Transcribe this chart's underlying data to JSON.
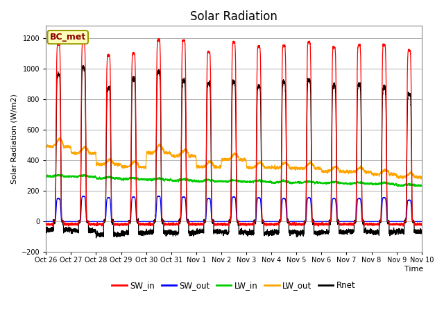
{
  "title": "Solar Radiation",
  "ylabel": "Solar Radiation (W/m2)",
  "xlabel": "Time",
  "ylim": [
    -200,
    1280
  ],
  "yticks": [
    -200,
    0,
    200,
    400,
    600,
    800,
    1000,
    1200
  ],
  "xtick_labels": [
    "Oct 26",
    "Oct 27",
    "Oct 28",
    "Oct 29",
    "Oct 30",
    "Oct 31",
    "Nov 1",
    "Nov 2",
    "Nov 3",
    "Nov 4",
    "Nov 5",
    "Nov 6",
    "Nov 7",
    "Nov 8",
    "Nov 9",
    "Nov 10"
  ],
  "n_days": 15,
  "points_per_day": 288,
  "SW_in_peak": [
    1160,
    1175,
    1090,
    1100,
    1190,
    1185,
    1110,
    1175,
    1145,
    1150,
    1175,
    1140,
    1155,
    1155,
    1120
  ],
  "SW_out_peak": [
    150,
    165,
    155,
    160,
    165,
    160,
    150,
    160,
    155,
    150,
    155,
    150,
    150,
    155,
    140
  ],
  "LW_in_base": [
    295,
    295,
    285,
    280,
    278,
    273,
    270,
    270,
    268,
    265,
    265,
    262,
    260,
    258,
    250
  ],
  "LW_out_base": [
    490,
    450,
    380,
    365,
    460,
    440,
    370,
    420,
    370,
    370,
    370,
    350,
    350,
    335,
    320
  ],
  "LW_out_day_bump": [
    50,
    40,
    30,
    35,
    50,
    40,
    35,
    40,
    35,
    35,
    35,
    30,
    30,
    30,
    25
  ],
  "Rnet_peak": [
    960,
    1005,
    870,
    935,
    980,
    920,
    905,
    915,
    885,
    910,
    925,
    890,
    895,
    875,
    835
  ],
  "Rnet_night": [
    -55,
    -60,
    -85,
    -75,
    -70,
    -75,
    -65,
    -70,
    -75,
    -70,
    -75,
    -70,
    -65,
    -70,
    -65
  ],
  "SW_in_night": [
    -18,
    -18,
    -18,
    -18,
    -18,
    -18,
    -18,
    -18,
    -18,
    -18,
    -18,
    -18,
    -18,
    -18,
    -18
  ],
  "colors": {
    "SW_in": "#ff0000",
    "SW_out": "#0000ff",
    "LW_in": "#00cc00",
    "LW_out": "#ffa500",
    "Rnet": "#000000"
  },
  "legend_label": "BC_met",
  "plot_bg": "#f0f0f0"
}
